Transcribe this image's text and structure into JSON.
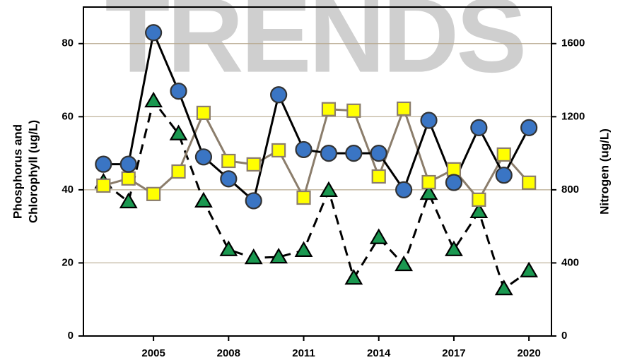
{
  "chart_data": {
    "type": "line",
    "watermark": "TRENDS",
    "ylabel": [
      "Phosphorus and",
      "Chlorophyll (ug/L)"
    ],
    "y2label": "Nitrogen (ug/L)",
    "x": [
      2003,
      2004,
      2005,
      2006,
      2007,
      2008,
      2009,
      2010,
      2011,
      2012,
      2013,
      2014,
      2015,
      2016,
      2017,
      2018,
      2019,
      2020
    ],
    "xlim": [
      2002.2,
      2020.9
    ],
    "xticks": [
      2005,
      2008,
      2011,
      2014,
      2017,
      2020
    ],
    "ylim": [
      0,
      90
    ],
    "yticks": [
      0,
      20,
      40,
      60,
      80
    ],
    "y2lim": [
      0,
      1800
    ],
    "y2ticks": [
      0,
      400,
      800,
      1200,
      1600
    ],
    "grid": true,
    "series": [
      {
        "color": "#1a9850",
        "line_color": "#000000",
        "dashed": true,
        "marker": "triangle",
        "axis": "y",
        "values": [
          42.1,
          36.7,
          64.3,
          55.3,
          36.9,
          23.6,
          21.4,
          21.6,
          23.4,
          39.8,
          15.8,
          26.9,
          19.5,
          39,
          23.6,
          34,
          12.9,
          17.8
        ]
      },
      {
        "color": "#ffff00",
        "line_color": "#8b7d6b",
        "dashed": false,
        "marker": "square",
        "axis": "y2",
        "values": [
          823,
          862,
          777,
          900,
          1221,
          958,
          939,
          1016,
          757,
          1241,
          1233,
          873,
          1244,
          842,
          912,
          746,
          993,
          839
        ]
      },
      {
        "color": "#3a75c4",
        "line_color": "#000000",
        "dashed": false,
        "marker": "circle",
        "axis": "y",
        "values": [
          47,
          47,
          83,
          67,
          49,
          43,
          37,
          66,
          51,
          50,
          50,
          50,
          40,
          59,
          42,
          57,
          44,
          57
        ]
      }
    ]
  }
}
